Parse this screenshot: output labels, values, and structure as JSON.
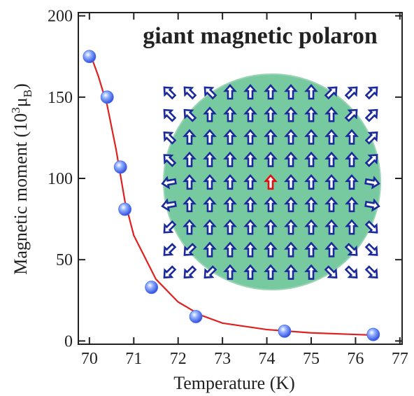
{
  "chart_data": {
    "type": "scatter",
    "annotation": "giant magnetic polaron",
    "x_label": "Temperature (K)",
    "y_label": [
      "Magnetic moment  (10",
      "3",
      "μ",
      "B",
      ")"
    ],
    "xlim": [
      69.75,
      77.05
    ],
    "ylim": [
      -2,
      202
    ],
    "xticks": [
      70,
      71,
      72,
      73,
      74,
      75,
      76,
      77
    ],
    "yticks": [
      0,
      50,
      100,
      150,
      200
    ],
    "series": [
      {
        "style": "line",
        "color": "#e02020",
        "x": [
          70,
          70.2,
          70.4,
          70.6,
          70.8,
          71,
          71.5,
          72,
          72.5,
          73,
          74,
          75,
          76,
          76.5
        ],
        "values": [
          178,
          163,
          145,
          118,
          86,
          65,
          38,
          24,
          16,
          11,
          7,
          5,
          4,
          3.5
        ]
      },
      {
        "style": "markers",
        "color": "#4a6cf0",
        "x": [
          70,
          70.4,
          70.7,
          70.8,
          71.4,
          72.4,
          74.4,
          76.4
        ],
        "values": [
          175,
          150,
          107,
          81,
          33,
          15,
          6,
          4
        ]
      }
    ]
  }
}
